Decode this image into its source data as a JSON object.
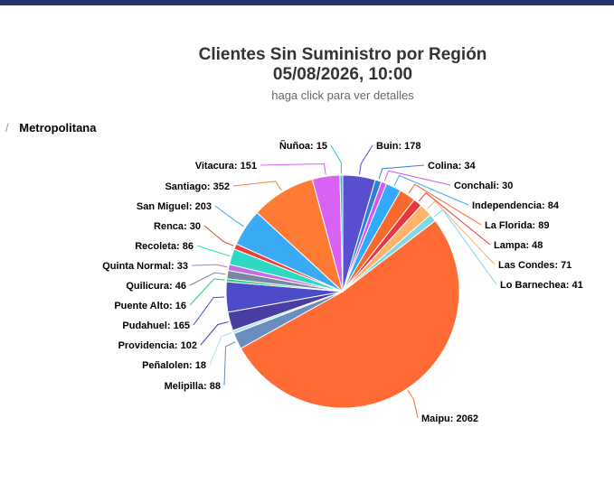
{
  "header": {
    "title_line1": "Clientes Sin Suministro por Región",
    "title_line2": "05/08/2026, 10:00",
    "subtitle": "haga click para ver detalles"
  },
  "breadcrumb": {
    "separator": "/",
    "current": "Metropolitana"
  },
  "colors": {
    "top_bar": "#24366b"
  },
  "chart_data": {
    "type": "pie",
    "title": "Clientes Sin Suministro por Región",
    "subtitle": "05/08/2026, 10:00",
    "data_label_format": "{name}: {value}",
    "legend": "none",
    "slices": [
      {
        "name": "Buin",
        "value": 178,
        "color": "#5b4fd1"
      },
      {
        "name": "Colina",
        "value": 34,
        "color": "#2f7ed8"
      },
      {
        "name": "Conchali",
        "value": 30,
        "color": "#d357f0"
      },
      {
        "name": "Independencia",
        "value": 84,
        "color": "#33aaff"
      },
      {
        "name": "La Florida",
        "value": 89,
        "color": "#f7692d"
      },
      {
        "name": "Lampa",
        "value": 48,
        "color": "#e8373f"
      },
      {
        "name": "Las Condes",
        "value": 71,
        "color": "#ffb36b"
      },
      {
        "name": "Lo Barnechea",
        "value": 41,
        "color": "#7fd8e3"
      },
      {
        "name": "Maipu",
        "value": 2062,
        "color": "#ff6b35"
      },
      {
        "name": "Melipilla",
        "value": 88,
        "color": "#6b8cbf"
      },
      {
        "name": "Peñalolen",
        "value": 18,
        "color": "#a8e6f0"
      },
      {
        "name": "Providencia",
        "value": 102,
        "color": "#4a3fa0"
      },
      {
        "name": "Pudahuel",
        "value": 165,
        "color": "#4c4cc9"
      },
      {
        "name": "Puente Alto",
        "value": 16,
        "color": "#1fd17a"
      },
      {
        "name": "Quilicura",
        "value": 46,
        "color": "#7a88a6"
      },
      {
        "name": "Quinta Normal",
        "value": 33,
        "color": "#c36ee0"
      },
      {
        "name": "Recoleta",
        "value": 86,
        "color": "#2ed9c3"
      },
      {
        "name": "Renca",
        "value": 30,
        "color": "#e6403a"
      },
      {
        "name": "San Miguel",
        "value": 203,
        "color": "#3aaaf5"
      },
      {
        "name": "Santiago",
        "value": 352,
        "color": "#ff7a33"
      },
      {
        "name": "Vitacura",
        "value": 151,
        "color": "#d962f5"
      },
      {
        "name": "Ñuñoa",
        "value": 15,
        "color": "#27c2c2"
      }
    ]
  }
}
